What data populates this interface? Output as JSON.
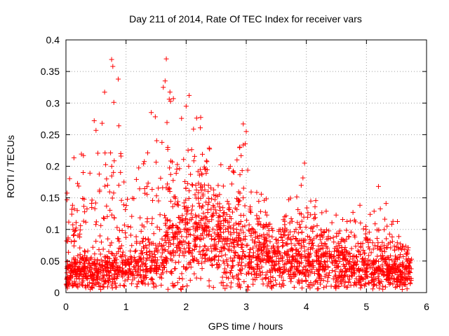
{
  "chart_data": {
    "type": "scatter",
    "title": "Day 211 of 2014, Rate Of TEC Index for receiver vars",
    "xlabel": "GPS time / hours",
    "ylabel": "ROTI / TECUs",
    "xlim": [
      0,
      6
    ],
    "ylim": [
      0,
      0.4
    ],
    "xticks": [
      0,
      1,
      2,
      3,
      4,
      5,
      6
    ],
    "xtick_labels": [
      "0",
      "1",
      "2",
      "3",
      "4",
      "5",
      "6"
    ],
    "yticks": [
      0,
      0.05,
      0.1,
      0.15,
      0.2,
      0.25,
      0.3,
      0.35,
      0.4
    ],
    "ytick_labels": [
      "0",
      "0.05",
      "0.1",
      "0.15",
      "0.2",
      "0.25",
      "0.3",
      "0.35",
      "0.4"
    ],
    "grid": true,
    "marker": "+",
    "series_color": "#ff0000",
    "x_extent": [
      0,
      5.75
    ],
    "baseline_profile": [
      {
        "x": 0.0,
        "y": 0.03
      },
      {
        "x": 0.5,
        "y": 0.035
      },
      {
        "x": 1.0,
        "y": 0.035
      },
      {
        "x": 1.5,
        "y": 0.05
      },
      {
        "x": 2.0,
        "y": 0.09
      },
      {
        "x": 2.3,
        "y": 0.1
      },
      {
        "x": 2.6,
        "y": 0.07
      },
      {
        "x": 3.0,
        "y": 0.055
      },
      {
        "x": 3.5,
        "y": 0.05
      },
      {
        "x": 4.0,
        "y": 0.045
      },
      {
        "x": 4.5,
        "y": 0.04
      },
      {
        "x": 5.0,
        "y": 0.035
      },
      {
        "x": 5.75,
        "y": 0.03
      }
    ],
    "upper_envelope": [
      {
        "x": 0.0,
        "y": 0.15
      },
      {
        "x": 0.1,
        "y": 0.21
      },
      {
        "x": 0.3,
        "y": 0.23
      },
      {
        "x": 0.5,
        "y": 0.27
      },
      {
        "x": 0.75,
        "y": 0.37
      },
      {
        "x": 0.9,
        "y": 0.26
      },
      {
        "x": 1.1,
        "y": 0.2
      },
      {
        "x": 1.3,
        "y": 0.24
      },
      {
        "x": 1.45,
        "y": 0.285
      },
      {
        "x": 1.65,
        "y": 0.37
      },
      {
        "x": 1.85,
        "y": 0.28
      },
      {
        "x": 2.0,
        "y": 0.31
      },
      {
        "x": 2.3,
        "y": 0.27
      },
      {
        "x": 2.5,
        "y": 0.21
      },
      {
        "x": 2.8,
        "y": 0.2
      },
      {
        "x": 2.95,
        "y": 0.265
      },
      {
        "x": 3.1,
        "y": 0.17
      },
      {
        "x": 3.5,
        "y": 0.14
      },
      {
        "x": 3.9,
        "y": 0.17
      },
      {
        "x": 3.95,
        "y": 0.205
      },
      {
        "x": 4.3,
        "y": 0.145
      },
      {
        "x": 4.7,
        "y": 0.12
      },
      {
        "x": 5.0,
        "y": 0.15
      },
      {
        "x": 5.2,
        "y": 0.17
      },
      {
        "x": 5.5,
        "y": 0.115
      },
      {
        "x": 5.75,
        "y": 0.095
      }
    ],
    "outliers": [
      {
        "x": 0.76,
        "y": 0.369
      },
      {
        "x": 0.78,
        "y": 0.358
      },
      {
        "x": 0.87,
        "y": 0.338
      },
      {
        "x": 1.67,
        "y": 0.37
      },
      {
        "x": 1.65,
        "y": 0.335
      },
      {
        "x": 1.62,
        "y": 0.325
      },
      {
        "x": 2.05,
        "y": 0.312
      },
      {
        "x": 2.0,
        "y": 0.295
      },
      {
        "x": 2.95,
        "y": 0.267
      },
      {
        "x": 3.0,
        "y": 0.255
      },
      {
        "x": 0.47,
        "y": 0.272
      },
      {
        "x": 0.88,
        "y": 0.264
      },
      {
        "x": 1.42,
        "y": 0.285
      },
      {
        "x": 3.97,
        "y": 0.205
      },
      {
        "x": 5.2,
        "y": 0.168
      }
    ],
    "point_count": 2600
  }
}
